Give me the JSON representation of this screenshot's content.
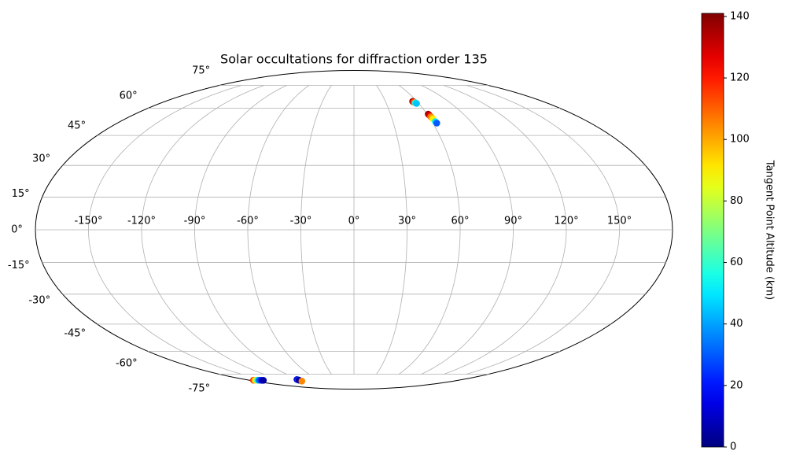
{
  "chart_data": {
    "type": "scatter",
    "projection": "mollweide",
    "colormap": "jet",
    "grid": true,
    "title": "Solar occultations for diffraction order 135",
    "colorbar_label": "Tangent Point Altitude (km)",
    "x": [
      56,
      56.3,
      56.6,
      57,
      57.4,
      57.7,
      58,
      61,
      61.3,
      61.6,
      61.9,
      62.2,
      62.6,
      63,
      -172,
      -170,
      -168,
      -166,
      -164,
      -162,
      -159,
      -156,
      -94,
      -94,
      -94,
      -94
    ],
    "y": [
      64.2,
      64,
      63.8,
      63.6,
      63.3,
      63.1,
      62.9,
      56.6,
      56.2,
      55.2,
      54.6,
      53.8,
      52.4,
      51.6,
      -79.8,
      -79.8,
      -79.8,
      -79.8,
      -79.8,
      -79.8,
      -79.9,
      -79.9,
      -79.2,
      -79.5,
      -79.8,
      -80.6
    ],
    "values": [
      140,
      130,
      120,
      110,
      60,
      50,
      45,
      140,
      130,
      110,
      100,
      90,
      50,
      30,
      120,
      100,
      90,
      70,
      50,
      30,
      15,
      5,
      10,
      25,
      5,
      105
    ],
    "xticks": [
      {
        "value": -150,
        "label": "-150°"
      },
      {
        "value": -120,
        "label": "-120°"
      },
      {
        "value": -90,
        "label": "-90°"
      },
      {
        "value": -60,
        "label": "-60°"
      },
      {
        "value": -30,
        "label": "-30°"
      },
      {
        "value": 0,
        "label": "0°"
      },
      {
        "value": 30,
        "label": "30°"
      },
      {
        "value": 60,
        "label": "60°"
      },
      {
        "value": 90,
        "label": "90°"
      },
      {
        "value": 120,
        "label": "120°"
      },
      {
        "value": 150,
        "label": "150°"
      }
    ],
    "yticks": [
      {
        "value": -75,
        "label": "-75°"
      },
      {
        "value": -60,
        "label": "-60°"
      },
      {
        "value": -45,
        "label": "-45°"
      },
      {
        "value": -30,
        "label": "-30°"
      },
      {
        "value": -15,
        "label": "-15°"
      },
      {
        "value": 0,
        "label": "0°"
      },
      {
        "value": 15,
        "label": "15°"
      },
      {
        "value": 30,
        "label": "30°"
      },
      {
        "value": 45,
        "label": "45°"
      },
      {
        "value": 60,
        "label": "60°"
      },
      {
        "value": 75,
        "label": "75°"
      }
    ],
    "clim": [
      0,
      141
    ],
    "cticks": [
      0,
      20,
      40,
      60,
      80,
      100,
      120,
      140
    ]
  }
}
